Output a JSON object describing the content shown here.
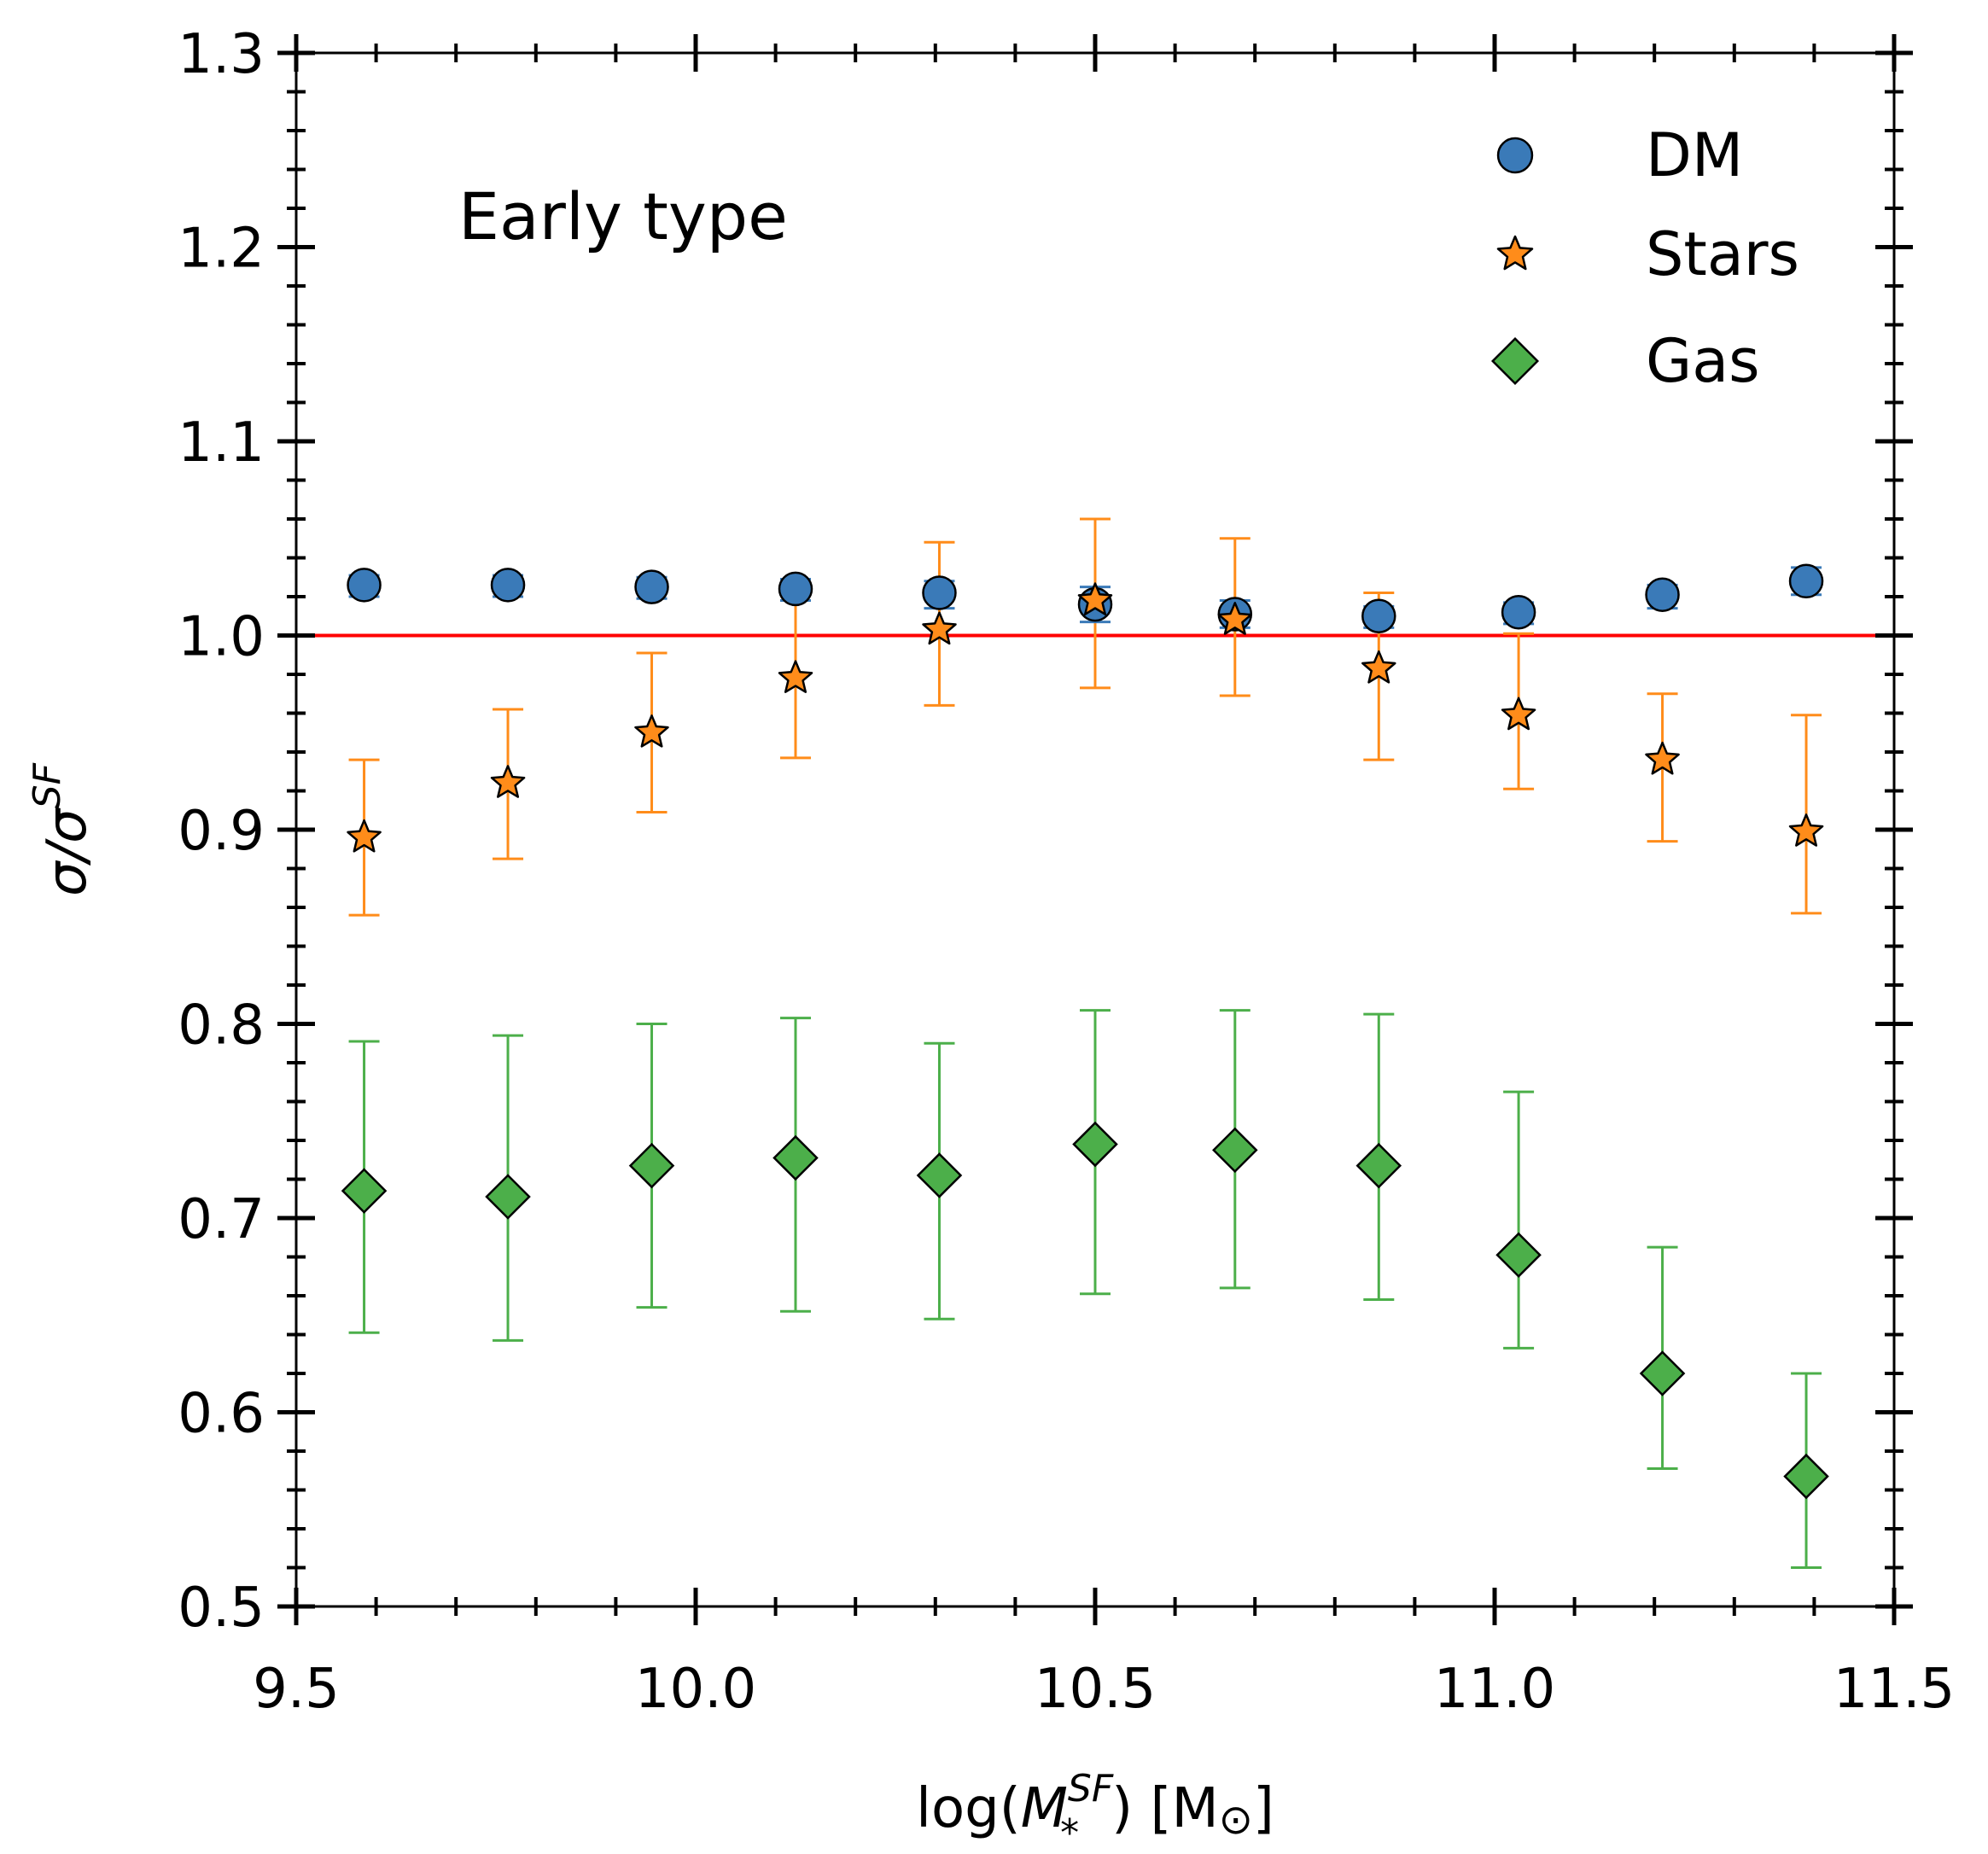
{
  "chart_data": {
    "type": "scatter",
    "annotation": "Early type",
    "xlabel": {
      "prefix": "log(",
      "var": "M",
      "sub": "*",
      "sup": "SF",
      "suffix": ") [M",
      "sun": "⊙",
      "close": "]"
    },
    "ylabel": {
      "num": "σ/σ",
      "sup": "SF"
    },
    "xlim": [
      9.5,
      11.5
    ],
    "ylim": [
      0.5,
      1.3
    ],
    "xticks": [
      "9.5",
      "10.0",
      "10.5",
      "11.0",
      "11.5"
    ],
    "yticks": [
      "0.5",
      "0.6",
      "0.7",
      "0.8",
      "0.9",
      "1.0",
      "1.1",
      "1.2",
      "1.3"
    ],
    "reference_line": {
      "y": 1.0,
      "color": "#ff0000"
    },
    "legend_position": "top-right",
    "series": [
      {
        "name": "DM",
        "marker": "circle",
        "color": "#3a7ab8",
        "x": [
          9.585,
          9.765,
          9.945,
          10.125,
          10.305,
          10.5,
          10.675,
          10.855,
          11.03,
          11.21,
          11.39
        ],
        "y": [
          1.026,
          1.026,
          1.025,
          1.024,
          1.022,
          1.016,
          1.011,
          1.01,
          1.012,
          1.021,
          1.028
        ],
        "ylow": [
          1.02,
          1.02,
          1.019,
          1.018,
          1.014,
          1.007,
          1.004,
          1.004,
          1.006,
          1.014,
          1.021
        ],
        "yhigh": [
          1.031,
          1.031,
          1.03,
          1.029,
          1.028,
          1.025,
          1.018,
          1.015,
          1.017,
          1.026,
          1.035
        ]
      },
      {
        "name": "Stars",
        "marker": "star",
        "color": "#ff8c1a",
        "x": [
          9.585,
          9.765,
          9.945,
          10.125,
          10.305,
          10.5,
          10.675,
          10.855,
          11.03,
          11.21,
          11.39
        ],
        "y": [
          0.896,
          0.924,
          0.95,
          0.978,
          1.003,
          1.018,
          1.008,
          0.983,
          0.959,
          0.936,
          0.899
        ],
        "ylow": [
          0.856,
          0.885,
          0.909,
          0.937,
          0.964,
          0.973,
          0.969,
          0.936,
          0.921,
          0.894,
          0.857
        ],
        "yhigh": [
          0.936,
          0.962,
          0.991,
          1.021,
          1.048,
          1.06,
          1.05,
          1.022,
          1.001,
          0.97,
          0.959
        ]
      },
      {
        "name": "Gas",
        "marker": "diamond",
        "color": "#4caf4a",
        "x": [
          9.585,
          9.765,
          9.945,
          10.125,
          10.305,
          10.5,
          10.675,
          10.855,
          11.03,
          11.21,
          11.39
        ],
        "y": [
          0.714,
          0.711,
          0.727,
          0.731,
          0.722,
          0.738,
          0.735,
          0.727,
          0.681,
          0.62,
          0.567
        ],
        "ylow": [
          0.641,
          0.637,
          0.654,
          0.652,
          0.648,
          0.661,
          0.664,
          0.658,
          0.633,
          0.571,
          0.52
        ],
        "yhigh": [
          0.791,
          0.794,
          0.8,
          0.803,
          0.79,
          0.807,
          0.807,
          0.805,
          0.765,
          0.685,
          0.62
        ]
      }
    ]
  }
}
